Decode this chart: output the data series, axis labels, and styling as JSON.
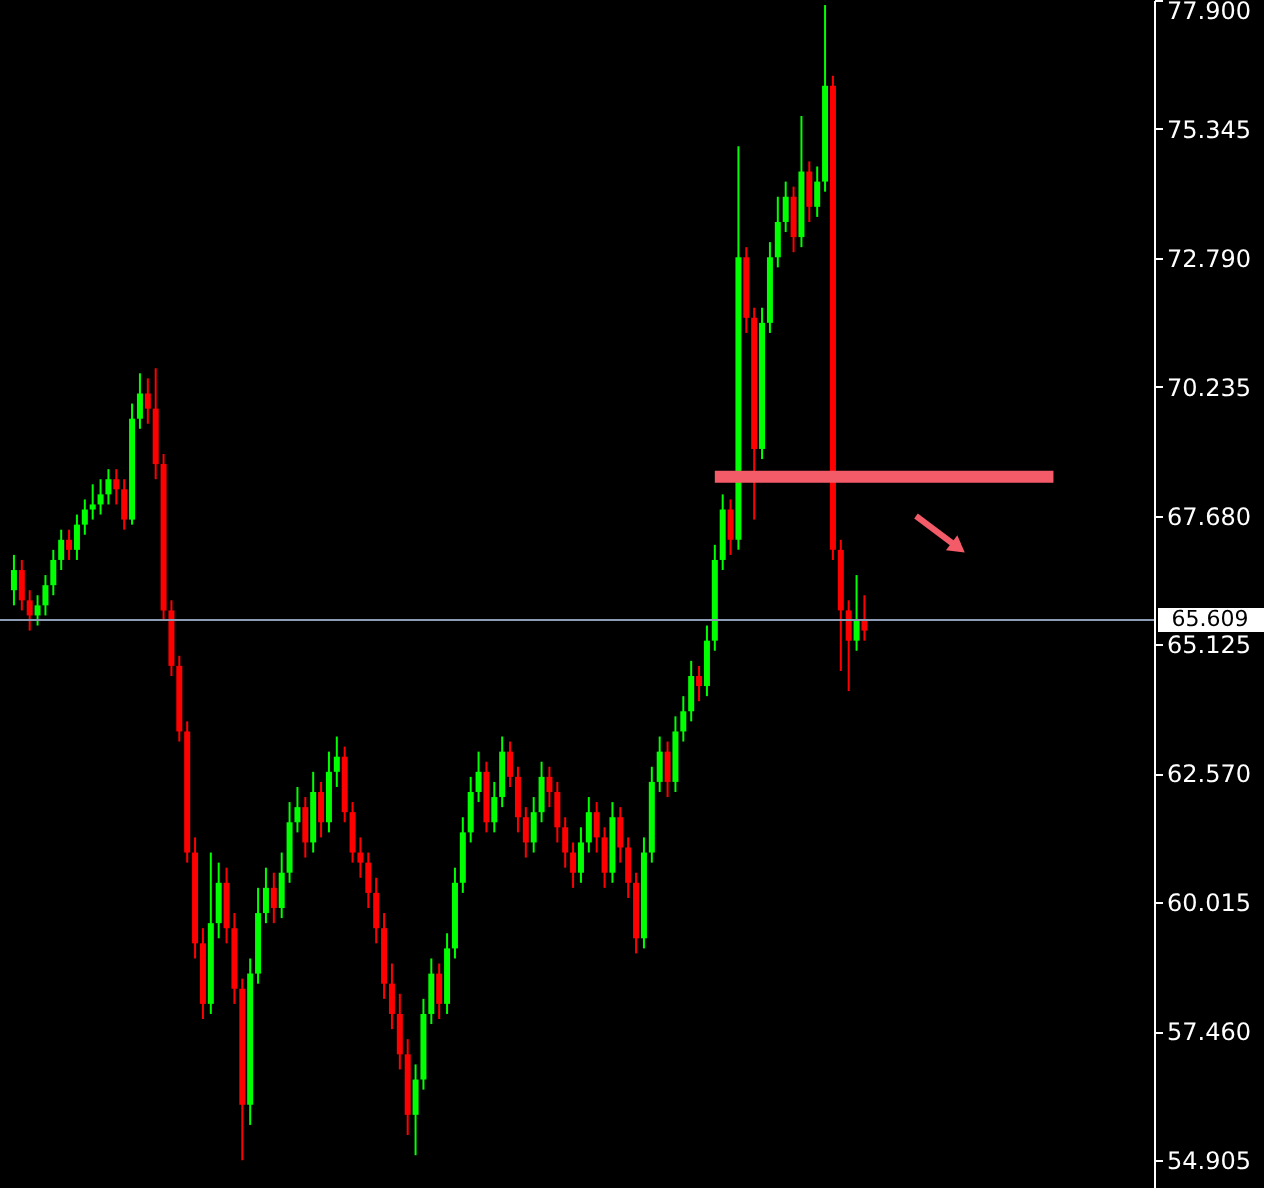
{
  "chart_data": {
    "type": "candlestick",
    "categories": [
      null,
      null,
      null,
      null,
      null,
      null,
      null,
      null,
      null,
      null,
      null,
      null,
      null,
      null,
      null,
      null,
      null,
      null,
      null,
      null,
      null,
      null,
      null,
      null,
      null,
      null,
      null,
      null,
      null,
      null,
      null,
      null,
      null,
      null,
      null,
      null,
      null,
      null,
      null,
      null,
      null,
      null,
      null,
      null,
      null,
      null,
      null,
      null,
      null,
      null,
      null,
      null,
      null,
      null,
      null,
      null,
      null,
      null,
      null,
      null,
      null,
      null,
      null,
      null,
      null,
      null,
      null,
      null,
      null,
      null,
      null,
      null,
      null,
      null,
      null,
      null,
      null,
      null,
      null,
      null,
      null,
      null,
      null,
      null,
      null,
      null,
      null,
      null,
      null,
      null,
      null,
      null,
      null,
      null,
      null,
      null,
      null,
      null,
      null,
      null,
      null,
      null,
      null,
      null,
      null,
      null,
      null,
      null,
      null,
      null,
      null,
      null,
      null,
      null,
      null,
      null,
      null,
      null,
      null,
      null,
      null,
      null,
      null,
      null,
      null,
      null,
      null,
      null,
      null,
      null,
      null,
      null,
      null,
      null,
      null,
      null,
      null,
      null,
      null,
      null,
      null,
      null,
      null,
      null
    ],
    "ohlc": [
      [
        66.2,
        66.9,
        65.9,
        66.6
      ],
      [
        66.6,
        66.8,
        65.8,
        66.0
      ],
      [
        66.0,
        66.2,
        65.4,
        65.7
      ],
      [
        65.7,
        66.1,
        65.5,
        65.9
      ],
      [
        65.9,
        66.5,
        65.7,
        66.3
      ],
      [
        66.3,
        67.0,
        66.1,
        66.8
      ],
      [
        66.8,
        67.4,
        66.6,
        67.2
      ],
      [
        67.2,
        67.4,
        66.8,
        67.0
      ],
      [
        67.0,
        67.7,
        66.8,
        67.5
      ],
      [
        67.5,
        68.0,
        67.3,
        67.8
      ],
      [
        67.8,
        68.3,
        67.6,
        67.9
      ],
      [
        67.9,
        68.4,
        67.7,
        68.1
      ],
      [
        68.1,
        68.6,
        67.9,
        68.4
      ],
      [
        68.4,
        68.6,
        67.9,
        68.2
      ],
      [
        68.2,
        68.4,
        67.4,
        67.6
      ],
      [
        67.6,
        69.9,
        67.5,
        69.6
      ],
      [
        69.6,
        70.5,
        69.4,
        70.1
      ],
      [
        70.1,
        70.4,
        69.5,
        69.8
      ],
      [
        69.8,
        70.6,
        68.4,
        68.7
      ],
      [
        68.7,
        68.9,
        65.6,
        65.8
      ],
      [
        65.8,
        66.0,
        64.5,
        64.7
      ],
      [
        64.7,
        64.9,
        63.2,
        63.4
      ],
      [
        63.4,
        63.6,
        60.8,
        61.0
      ],
      [
        61.0,
        61.3,
        58.9,
        59.2
      ],
      [
        59.2,
        59.5,
        57.7,
        58.0
      ],
      [
        58.0,
        61.0,
        57.8,
        59.6
      ],
      [
        59.6,
        60.8,
        59.3,
        60.4
      ],
      [
        60.4,
        60.7,
        59.2,
        59.5
      ],
      [
        59.5,
        59.8,
        58.0,
        58.3
      ],
      [
        58.3,
        58.5,
        54.9,
        56.0
      ],
      [
        56.0,
        58.9,
        55.6,
        58.6
      ],
      [
        58.6,
        60.3,
        58.4,
        59.8
      ],
      [
        59.8,
        60.7,
        59.6,
        60.3
      ],
      [
        60.3,
        60.6,
        59.6,
        59.9
      ],
      [
        59.9,
        61.0,
        59.7,
        60.6
      ],
      [
        60.6,
        62.0,
        60.4,
        61.6
      ],
      [
        61.6,
        62.3,
        61.4,
        61.9
      ],
      [
        61.9,
        62.1,
        60.9,
        61.2
      ],
      [
        61.2,
        62.6,
        61.0,
        62.2
      ],
      [
        62.2,
        62.4,
        61.3,
        61.6
      ],
      [
        61.6,
        63.0,
        61.4,
        62.6
      ],
      [
        62.6,
        63.3,
        62.3,
        62.9
      ],
      [
        62.9,
        63.1,
        61.6,
        61.8
      ],
      [
        61.8,
        62.0,
        60.8,
        61.0
      ],
      [
        61.0,
        61.3,
        60.5,
        60.8
      ],
      [
        60.8,
        61.0,
        59.9,
        60.2
      ],
      [
        60.2,
        60.5,
        59.2,
        59.5
      ],
      [
        59.5,
        59.8,
        58.1,
        58.4
      ],
      [
        58.4,
        58.8,
        57.5,
        57.8
      ],
      [
        57.8,
        58.2,
        56.7,
        57.0
      ],
      [
        57.0,
        57.3,
        55.4,
        55.8
      ],
      [
        55.8,
        56.8,
        55.0,
        56.5
      ],
      [
        56.5,
        58.1,
        56.3,
        57.8
      ],
      [
        57.8,
        58.9,
        57.6,
        58.6
      ],
      [
        58.6,
        58.8,
        57.7,
        58.0
      ],
      [
        58.0,
        59.4,
        57.8,
        59.1
      ],
      [
        59.1,
        60.7,
        58.9,
        60.4
      ],
      [
        60.4,
        61.7,
        60.2,
        61.4
      ],
      [
        61.4,
        62.5,
        61.2,
        62.2
      ],
      [
        62.2,
        63.0,
        62.0,
        62.6
      ],
      [
        62.6,
        62.8,
        61.4,
        61.6
      ],
      [
        61.6,
        62.4,
        61.4,
        62.1
      ],
      [
        62.1,
        63.3,
        61.9,
        63.0
      ],
      [
        63.0,
        63.2,
        62.3,
        62.5
      ],
      [
        62.5,
        62.7,
        61.4,
        61.7
      ],
      [
        61.7,
        61.9,
        60.9,
        61.2
      ],
      [
        61.2,
        62.1,
        61.0,
        61.8
      ],
      [
        61.8,
        62.8,
        61.6,
        62.5
      ],
      [
        62.5,
        62.7,
        61.9,
        62.2
      ],
      [
        62.2,
        62.4,
        61.2,
        61.5
      ],
      [
        61.5,
        61.7,
        60.7,
        61.0
      ],
      [
        61.0,
        61.2,
        60.3,
        60.6
      ],
      [
        60.6,
        61.5,
        60.4,
        61.2
      ],
      [
        61.2,
        62.1,
        61.0,
        61.8
      ],
      [
        61.8,
        62.0,
        61.0,
        61.3
      ],
      [
        61.3,
        61.5,
        60.3,
        60.6
      ],
      [
        60.6,
        62.0,
        60.4,
        61.7
      ],
      [
        61.7,
        61.9,
        60.8,
        61.1
      ],
      [
        61.1,
        61.3,
        60.1,
        60.4
      ],
      [
        60.4,
        60.6,
        59.0,
        59.3
      ],
      [
        59.3,
        61.3,
        59.1,
        61.0
      ],
      [
        61.0,
        62.7,
        60.8,
        62.4
      ],
      [
        62.4,
        63.3,
        62.2,
        63.0
      ],
      [
        63.0,
        63.2,
        62.1,
        62.4
      ],
      [
        62.4,
        63.7,
        62.2,
        63.4
      ],
      [
        63.4,
        64.1,
        63.2,
        63.8
      ],
      [
        63.8,
        64.8,
        63.6,
        64.5
      ],
      [
        64.5,
        64.7,
        64.0,
        64.3
      ],
      [
        64.3,
        65.5,
        64.1,
        65.2
      ],
      [
        65.2,
        67.1,
        65.0,
        66.8
      ],
      [
        66.8,
        68.1,
        66.6,
        67.8
      ],
      [
        67.8,
        68.0,
        66.9,
        67.2
      ],
      [
        67.2,
        75.0,
        67.0,
        72.8
      ],
      [
        72.8,
        73.0,
        71.3,
        71.6
      ],
      [
        71.6,
        71.8,
        67.6,
        69.0
      ],
      [
        69.0,
        71.8,
        68.8,
        71.5
      ],
      [
        71.5,
        73.1,
        71.3,
        72.8
      ],
      [
        72.8,
        74.0,
        72.6,
        73.5
      ],
      [
        73.5,
        74.3,
        73.3,
        74.0
      ],
      [
        74.0,
        74.2,
        72.9,
        73.2
      ],
      [
        73.2,
        75.6,
        73.0,
        74.5
      ],
      [
        74.5,
        74.7,
        73.5,
        73.8
      ],
      [
        73.8,
        74.6,
        73.6,
        74.3
      ],
      [
        74.3,
        77.8,
        74.1,
        76.2
      ],
      [
        76.2,
        76.4,
        66.8,
        67.0
      ],
      [
        67.0,
        67.2,
        64.6,
        65.8
      ],
      [
        65.8,
        66.0,
        64.2,
        65.2
      ],
      [
        65.2,
        66.5,
        65.0,
        65.6
      ],
      [
        65.6,
        66.1,
        65.2,
        65.4
      ],
      null,
      null,
      null,
      null,
      null,
      null,
      null,
      null,
      null,
      null,
      null,
      null,
      null,
      null,
      null,
      null,
      null,
      null,
      null,
      null,
      null,
      null,
      null,
      null,
      null,
      null,
      null,
      null,
      null,
      null,
      null,
      null,
      null,
      null,
      null
    ],
    "colors": [
      "#00ff00",
      "#ff0000",
      "#ff0000",
      "#00ff00",
      "#00ff00",
      "#00ff00",
      "#00ff00",
      "#ff0000",
      "#00ff00",
      "#00ff00",
      "#00ff00",
      "#00ff00",
      "#00ff00",
      "#ff0000",
      "#ff0000",
      "#00ff00",
      "#00ff00",
      "#ff0000",
      "#ff0000",
      "#ff0000",
      "#ff0000",
      "#ff0000",
      "#ff0000",
      "#ff0000",
      "#ff0000",
      "#00ff00",
      "#00ff00",
      "#ff0000",
      "#ff0000",
      "#ff0000",
      "#00ff00",
      "#00ff00",
      "#00ff00",
      "#ff0000",
      "#00ff00",
      "#00ff00",
      "#00ff00",
      "#ff0000",
      "#00ff00",
      "#ff0000",
      "#00ff00",
      "#00ff00",
      "#ff0000",
      "#ff0000",
      "#ff0000",
      "#ff0000",
      "#ff0000",
      "#ff0000",
      "#ff0000",
      "#ff0000",
      "#ff0000",
      "#00ff00",
      "#00ff00",
      "#00ff00",
      "#ff0000",
      "#00ff00",
      "#00ff00",
      "#00ff00",
      "#00ff00",
      "#00ff00",
      "#ff0000",
      "#00ff00",
      "#00ff00",
      "#ff0000",
      "#ff0000",
      "#ff0000",
      "#00ff00",
      "#00ff00",
      "#ff0000",
      "#ff0000",
      "#ff0000",
      "#ff0000",
      "#00ff00",
      "#00ff00",
      "#ff0000",
      "#ff0000",
      "#00ff00",
      "#ff0000",
      "#ff0000",
      "#ff0000",
      "#00ff00",
      "#00ff00",
      "#00ff00",
      "#ff0000",
      "#00ff00",
      "#00ff00",
      "#00ff00",
      "#ff0000",
      "#00ff00",
      "#00ff00",
      "#00ff00",
      "#ff0000",
      "#00ff00",
      "#ff0000",
      "#ff0000",
      "#00ff00",
      "#00ff00",
      "#00ff00",
      "#00ff00",
      "#ff0000",
      "#00ff00",
      "#ff0000",
      "#00ff00",
      "#00ff00",
      "#ff0000",
      "#ff0000",
      "#ff0000",
      "#00ff00",
      "#ff0000",
      null,
      null,
      null,
      null,
      null,
      null,
      null,
      null,
      null,
      null,
      null,
      null,
      null,
      null,
      null,
      null,
      null,
      null,
      null,
      null,
      null,
      null,
      null,
      null,
      null,
      null,
      null,
      null,
      null,
      null,
      null,
      null,
      null,
      null,
      null
    ],
    "series": [
      {
        "type": "line",
        "color": "#f45b69",
        "values": [
          null,
          null,
          null,
          null,
          null,
          null,
          null,
          null,
          null,
          null,
          null,
          null,
          null,
          null,
          null,
          null,
          null,
          null,
          null,
          null,
          null,
          null,
          null,
          null,
          null,
          null,
          null,
          null,
          null,
          null,
          null,
          null,
          null,
          null,
          null,
          null,
          null,
          null,
          null,
          null,
          null,
          null,
          null,
          null,
          null,
          null,
          null,
          null,
          null,
          null,
          null,
          null,
          null,
          null,
          null,
          null,
          null,
          null,
          null,
          null,
          null,
          null,
          null,
          null,
          null,
          null,
          null,
          null,
          null,
          null,
          null,
          null,
          null,
          null,
          null,
          null,
          null,
          null,
          null,
          null,
          null,
          null,
          null,
          null,
          null,
          null,
          null,
          null,
          null,
          68.45,
          68.45,
          68.45,
          68.45,
          68.45,
          68.45,
          68.45,
          68.45,
          68.45,
          68.45,
          68.45,
          68.45,
          68.45,
          68.45,
          68.45,
          68.45,
          68.45,
          68.45,
          68.45,
          68.45,
          68.45,
          68.45,
          68.45,
          68.45,
          68.45,
          68.45,
          68.45,
          68.45,
          68.45,
          68.45,
          68.45,
          68.45,
          68.45,
          68.45,
          68.45,
          68.45,
          68.45,
          68.45,
          68.45,
          68.45,
          68.45,
          68.45,
          68.45,
          68.45,
          null,
          null,
          null,
          null,
          null,
          null,
          null,
          null,
          null,
          null,
          null
        ]
      }
    ],
    "ylim": [
      54.35,
      77.9
    ],
    "yticks": [
      54.905,
      {
        "value": 57.46,
        "label": "57.460"
      },
      60.015,
      {
        "value": 62.57,
        "label": "62.570"
      },
      65.125,
      {
        "value": 67.68,
        "label": "67.680"
      },
      70.235,
      {
        "value": 72.79,
        "label": "72.790"
      },
      75.345,
      {
        "value": 77.9,
        "label": "77.900"
      }
    ],
    "ref_lines": [
      {
        "axis": "y",
        "value": 65.609,
        "label": "65.609",
        "color": "#8c9cb4"
      }
    ],
    "tick_labels": "y",
    "grid": false
  }
}
